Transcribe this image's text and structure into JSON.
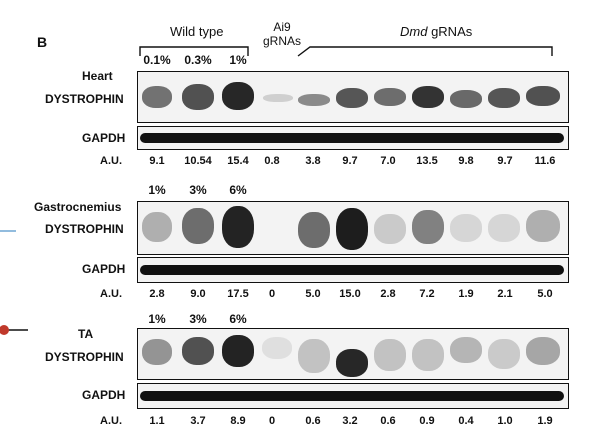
{
  "panel_label": "B",
  "header": {
    "wild_type": "Wild type",
    "ai9_line1": "Ai9",
    "ai9_line2": "gRNAs",
    "dmd_italic": "Dmd",
    "dmd_rest": " gRNAs",
    "top_percents": [
      "0.1%",
      "0.3%",
      "1%"
    ]
  },
  "panels": [
    {
      "tissue": "Heart",
      "target": "DYSTROPHIN",
      "loading": "GAPDH",
      "au_label": "A.U.",
      "percents": [],
      "au": [
        "9.1",
        "10.54",
        "15.4",
        "0.8",
        "3.8",
        "9.7",
        "7.0",
        "13.5",
        "9.8",
        "9.7",
        "11.6"
      ]
    },
    {
      "tissue": "Gastrocnemius",
      "target": "DYSTROPHIN",
      "loading": "GAPDH",
      "au_label": "A.U.",
      "percents": [
        "1%",
        "3%",
        "6%"
      ],
      "au": [
        "2.8",
        "9.0",
        "17.5",
        "0",
        "5.0",
        "15.0",
        "2.8",
        "7.2",
        "1.9",
        "2.1",
        "5.0"
      ]
    },
    {
      "tissue": "TA",
      "target": "DYSTROPHIN",
      "loading": "GAPDH",
      "au_label": "A.U.",
      "percents": [
        "1%",
        "3%",
        "6%"
      ],
      "au": [
        "1.1",
        "3.7",
        "8.9",
        "0",
        "0.6",
        "3.2",
        "0.6",
        "0.9",
        "0.4",
        "1.0",
        "1.9"
      ]
    }
  ],
  "colors": {
    "ink": "#111111",
    "band": "#1a1a1a",
    "accent_line": "#4a90c8",
    "marker_red": "#c0392b"
  }
}
